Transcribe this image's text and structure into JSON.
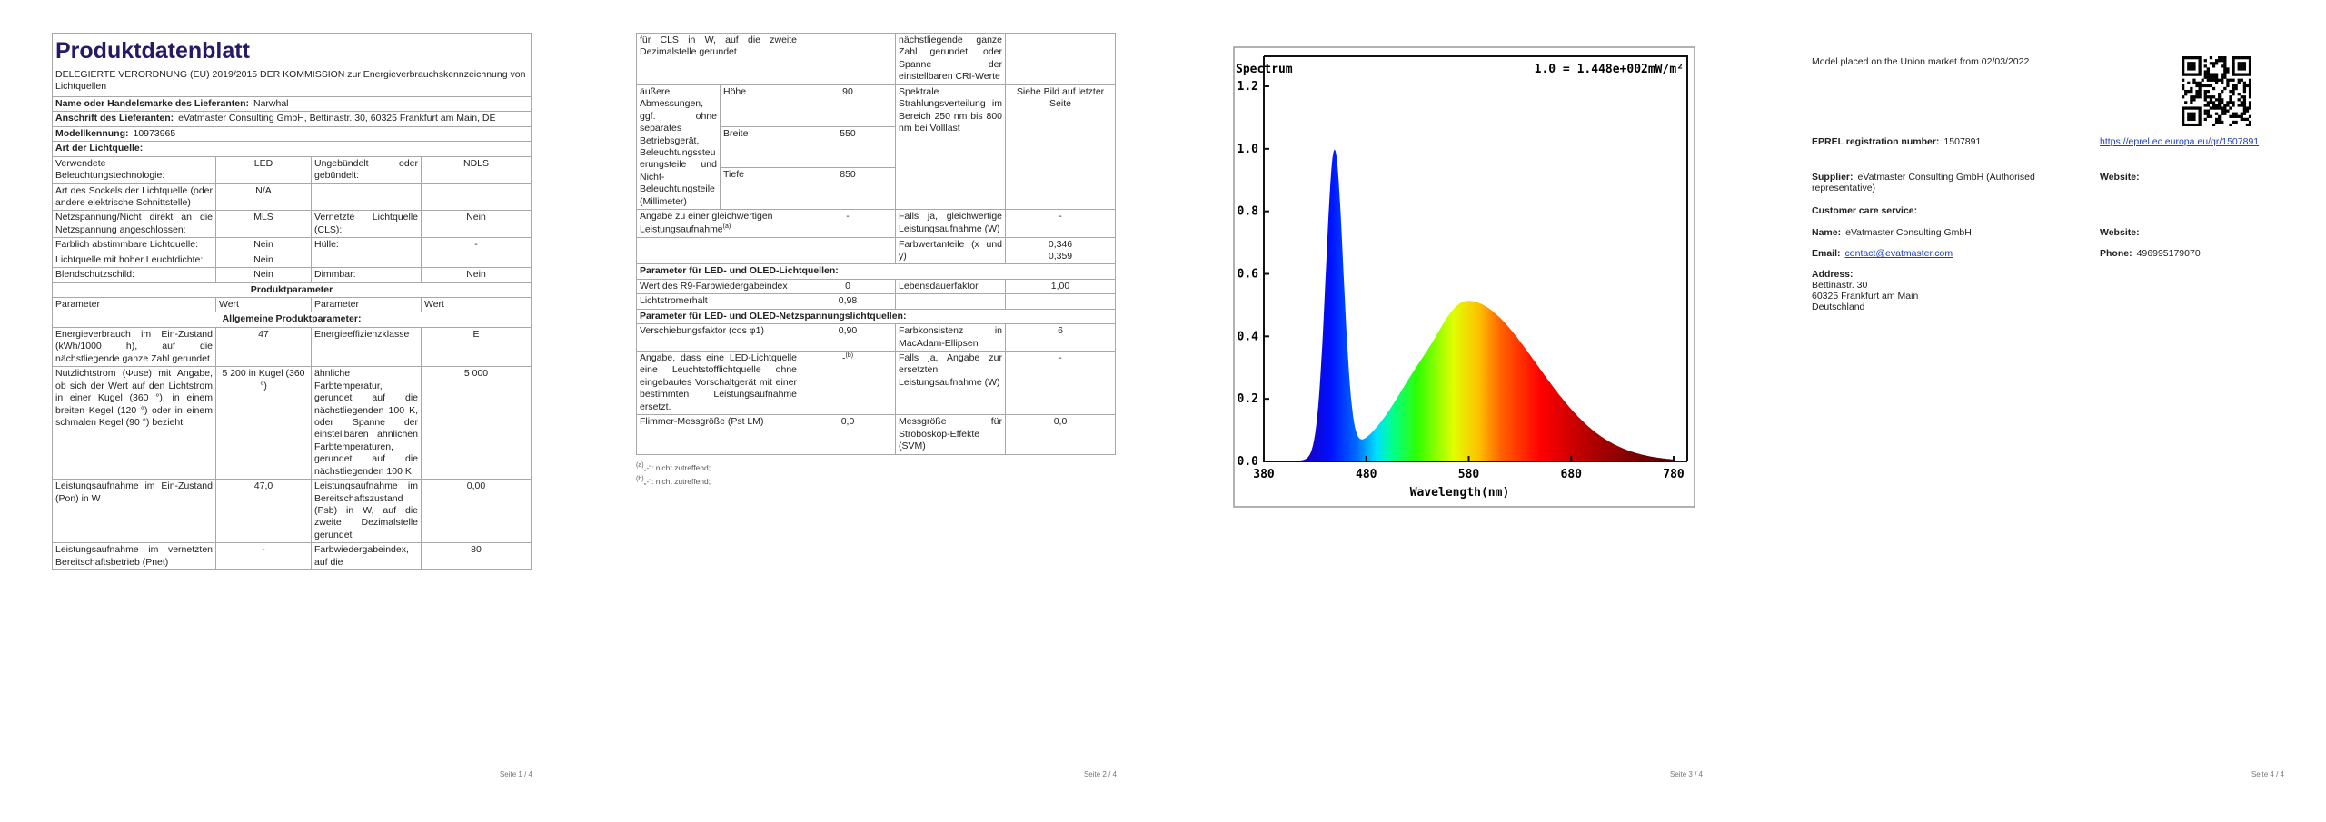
{
  "page1": {
    "title": "Produktdatenblatt",
    "regulation": "DELEGIERTE VERORDNUNG (EU) 2019/2015 DER KOMMISSION zur Energieverbrauchskennzeichnung von Lichtquellen",
    "supplier_name": {
      "label": "Name oder Handelsmarke des Lieferanten:",
      "value": "Narwhal"
    },
    "supplier_address": {
      "label": "Anschrift des Lieferanten:",
      "value": "eVatmaster Consulting GmbH, Bettinastr. 30, 60325 Frankfurt am Main, DE"
    },
    "model": {
      "label": "Modellkennung:",
      "value": "10973965"
    },
    "type_heading": "Art der Lichtquelle:",
    "type_rows": [
      [
        "Verwendete Beleuchtungstechnologie:",
        "LED",
        "Ungebündelt oder gebündelt:",
        "NDLS"
      ],
      [
        "Art des Sockels der Lichtquelle (oder andere elektrische Schnittstelle)",
        "N/A"
      ],
      [
        "Netzspannung/Nicht direkt an die Netzspannung angeschlossen:",
        "MLS",
        "Vernetzte Lichtquelle (CLS):",
        "Nein"
      ],
      [
        "Farblich abstimmbare Lichtquelle:",
        "Nein",
        "Hülle:",
        "-"
      ],
      [
        "Lichtquelle mit hoher Leuchtdichte:",
        "Nein"
      ],
      [
        "Blendschutzschild:",
        "Nein",
        "Dimmbar:",
        "Nein"
      ]
    ],
    "product_parameters": "Produktparameter",
    "columns": [
      "Parameter",
      "Wert",
      "Parameter",
      "Wert"
    ],
    "general_parameters": "Allgemeine Produktparameter:",
    "parameter_rows": [
      [
        "Energieverbrauch im Ein-Zustand (kWh/1000 h), auf die nächstliegende ganze Zahl gerundet",
        "47",
        "Energieeffizienzklasse",
        "E"
      ],
      [
        "Nutzlichtstrom (Φuse) mit Angabe, ob sich der Wert auf den Lichtstrom in einer Kugel (360 °), in einem breiten Kegel (120 °) oder in einem schmalen Kegel (90 °) bezieht",
        "5 200 in Kugel (360 °)",
        "ähnliche Farbtemperatur, gerundet auf die nächstliegenden 100 K, oder Spanne der einstellbaren ähnlichen Farbtemperaturen, gerundet auf die nächstliegenden 100 K",
        "5 000"
      ],
      [
        "Leistungsaufnahme im Ein-Zustand (Pon) in W",
        "47,0",
        "Leistungsaufnahme im Bereitschaftszustand (Psb) in W, auf die zweite Dezimalstelle gerundet",
        "0,00"
      ],
      [
        "Leistungsaufnahme im vernetzten Bereitschaftsbetrieb (Pnet)",
        "-",
        "Farbwiedergabeindex, auf die",
        "80"
      ]
    ],
    "footer": "Seite 1 / 4"
  },
  "page2": {
    "continued": {
      "left": "für CLS in W, auf die zweite Dezimalstelle gerundet",
      "right": "nächstliegende ganze Zahl gerundet, oder Spanne der einstellbaren CRI-Werte"
    },
    "dimensions": {
      "label": "äußere Abmessungen, ggf. ohne separates Betriebsgerät, Beleuchtungssteuerungsteile und Nicht-Beleuchtungsteile (Millimeter)",
      "items": [
        {
          "name": "Höhe",
          "value": "90"
        },
        {
          "name": "Breite",
          "value": "550"
        },
        {
          "name": "Tiefe",
          "value": "850"
        }
      ],
      "right_label": "Spektrale Strahlungsverteilung im Bereich 250 nm bis 800 nm bei Volllast",
      "right_value": "Siehe Bild auf letzter Seite"
    },
    "equivalent": {
      "label": "Angabe zu einer gleichwertigen Leistungsaufnahme",
      "note": "(a)",
      "value": "-",
      "right_label": "Falls ja, gleichwertige Leistungsaufnahme (W)",
      "right_value": "-"
    },
    "chromaticity": {
      "label": "Farbwertanteile (x und y)",
      "values": [
        "0,346",
        "0,359"
      ]
    },
    "led_heading": "Parameter für LED- und OLED-Lichtquellen:",
    "led_rows": [
      [
        "Wert des R9-Farbwiedergabeindex",
        "0",
        "Lebensdauerfaktor",
        "1,00"
      ],
      [
        "Lichtstromerhalt",
        "0,98"
      ]
    ],
    "mains_heading": "Parameter für LED- und OLED-Netzspannungslichtquellen:",
    "mains_rows": [
      [
        "Verschiebungsfaktor (cos φ1)",
        "0,90",
        "Farbkonsistenz in MacAdam-Ellipsen",
        "6"
      ],
      [
        "Flimmer-Messgröße (Pst LM)",
        "0,0",
        "Messgröße für Stroboskop-Effekte (SVM)",
        "0,0"
      ]
    ],
    "replacement": {
      "label": "Angabe, dass eine LED-Lichtquelle eine Leuchtstofflichtquelle ohne eingebautes Vorschaltgerät mit einer bestimmten Leistungsaufnahme ersetzt.",
      "value": "-",
      "note": "(b)",
      "right_label": "Falls ja, Angabe zur ersetzten Leistungsaufnahme (W)",
      "right_value": "-"
    },
    "footnotes": [
      {
        "mark": "(a)",
        "text": "„-“: nicht zutreffend;"
      },
      {
        "mark": "(b)",
        "text": "„-“: nicht zutreffend;"
      }
    ],
    "footer": "Seite 2 / 4"
  },
  "page3": {
    "spectrum": {
      "title": "Spectrum",
      "scale_note": "1.0 = 1.448e+002mW/m²",
      "x_label": "Wavelength(nm)",
      "xlim": [
        380,
        780
      ],
      "ylim": [
        0,
        1.2
      ],
      "xticks": [
        380,
        480,
        580,
        680,
        780
      ],
      "yticks": [
        {
          "value": 0,
          "label": "0.0"
        },
        {
          "value": 0.2,
          "label": "0.2"
        },
        {
          "value": 0.4,
          "label": "0.4"
        },
        {
          "value": 0.6,
          "label": "0.6"
        },
        {
          "value": 0.8,
          "label": "0.8"
        },
        {
          "value": 1,
          "label": "1.0"
        },
        {
          "value": 1.2,
          "label": "1.2"
        }
      ]
    },
    "footer": "Seite 3 / 4"
  },
  "page4": {
    "market": "Model placed on the Union market from 02/03/2022",
    "eprel": {
      "label": "EPREL registration number:",
      "value": "1507891",
      "link": "https://eprel.ec.europa.eu/qr/1507891"
    },
    "supplier": {
      "label": "Supplier:",
      "value": "eVatmaster Consulting GmbH (Authorised representative)",
      "website_label": "Website:"
    },
    "customer_care": "Customer care service:",
    "name": {
      "label": "Name:",
      "value": "eVatmaster Consulting GmbH"
    },
    "website_label": "Website:",
    "email": {
      "label": "Email:",
      "value": "contact@evatmaster.com"
    },
    "phone": {
      "label": "Phone:",
      "value": "496995179070"
    },
    "address": {
      "label": "Address:",
      "lines": [
        "Bettinastr. 30",
        "60325 Frankfurt am Main",
        "Deutschland"
      ]
    },
    "footer": "Seite 4 / 4"
  }
}
